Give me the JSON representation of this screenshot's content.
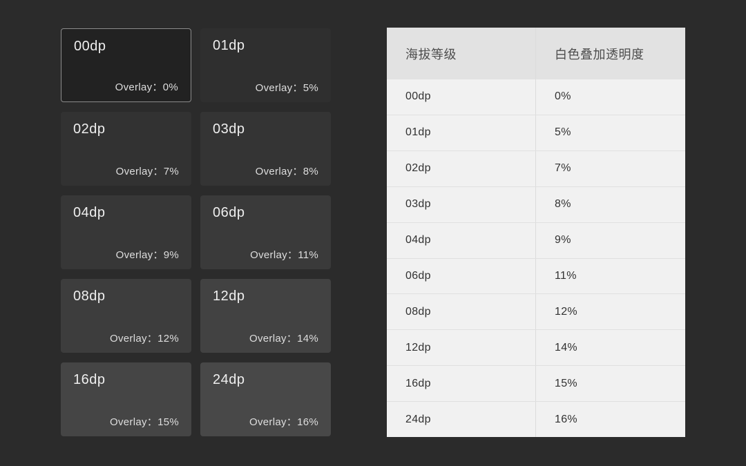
{
  "page": {
    "background": "#2b2b2b"
  },
  "cards": {
    "items": [
      {
        "title": "00dp",
        "overlay": "Overlay：0%",
        "bg": "#222222"
      },
      {
        "title": "01dp",
        "overlay": "Overlay：5%",
        "bg": "#2f2f2f"
      },
      {
        "title": "02dp",
        "overlay": "Overlay：7%",
        "bg": "#323232"
      },
      {
        "title": "03dp",
        "overlay": "Overlay：8%",
        "bg": "#343434"
      },
      {
        "title": "04dp",
        "overlay": "Overlay：9%",
        "bg": "#373737"
      },
      {
        "title": "06dp",
        "overlay": "Overlay：11%",
        "bg": "#3a3a3a"
      },
      {
        "title": "08dp",
        "overlay": "Overlay：12%",
        "bg": "#3d3d3d"
      },
      {
        "title": "12dp",
        "overlay": "Overlay：14%",
        "bg": "#424242"
      },
      {
        "title": "16dp",
        "overlay": "Overlay：15%",
        "bg": "#454545"
      },
      {
        "title": "24dp",
        "overlay": "Overlay：16%",
        "bg": "#484848"
      }
    ]
  },
  "table": {
    "headers": [
      "海拔等级",
      "白色叠加透明度"
    ],
    "header_bg": "#e2e2e2",
    "row_bg": "#f1f1f1",
    "rows": [
      [
        "00dp",
        "0%"
      ],
      [
        "01dp",
        "5%"
      ],
      [
        "02dp",
        "7%"
      ],
      [
        "03dp",
        "8%"
      ],
      [
        "04dp",
        "9%"
      ],
      [
        "06dp",
        "11%"
      ],
      [
        "08dp",
        "12%"
      ],
      [
        "12dp",
        "14%"
      ],
      [
        "16dp",
        "15%"
      ],
      [
        "24dp",
        "16%"
      ]
    ]
  }
}
